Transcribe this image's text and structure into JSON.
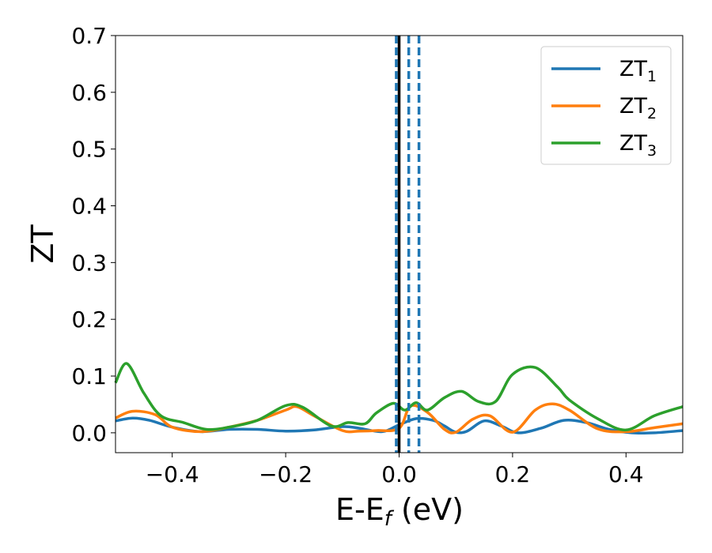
{
  "chart_data": {
    "type": "line",
    "xlabel": "E-E",
    "xlabel_sub": "f",
    "xlabel_unit": " (eV)",
    "ylabel": "ZT",
    "xlim": [
      -0.5,
      0.5
    ],
    "ylim": [
      -0.035,
      0.7
    ],
    "xticks": [
      -0.4,
      -0.2,
      0.0,
      0.2,
      0.4
    ],
    "xtick_labels": [
      "−0.4",
      "−0.2",
      "0.0",
      "0.2",
      "0.4"
    ],
    "yticks": [
      0.0,
      0.1,
      0.2,
      0.3,
      0.4,
      0.5,
      0.6,
      0.7
    ],
    "ytick_labels": [
      "0.0",
      "0.1",
      "0.2",
      "0.3",
      "0.4",
      "0.5",
      "0.6",
      "0.7"
    ],
    "grid": false,
    "legend_position": "top-right",
    "fermi_level_line": {
      "x": 0.0,
      "color": "#000000"
    },
    "dashed_lines": [
      {
        "x": -0.005,
        "color": "#1f77b4"
      },
      {
        "x": 0.017,
        "color": "#1f77b4"
      },
      {
        "x": 0.035,
        "color": "#1f77b4"
      }
    ],
    "series": [
      {
        "name": "ZT",
        "name_sub": "1",
        "color": "#1f77b4",
        "x": [
          -0.5,
          -0.47,
          -0.44,
          -0.4,
          -0.35,
          -0.3,
          -0.25,
          -0.2,
          -0.15,
          -0.1,
          -0.07,
          -0.03,
          0.0,
          0.03,
          0.06,
          0.08,
          0.1,
          0.12,
          0.15,
          0.18,
          0.21,
          0.25,
          0.29,
          0.33,
          0.37,
          0.41,
          0.45,
          0.5
        ],
        "y": [
          0.021,
          0.026,
          0.022,
          0.01,
          0.002,
          0.006,
          0.006,
          0.003,
          0.005,
          0.011,
          0.008,
          0.002,
          0.014,
          0.025,
          0.022,
          0.012,
          0.001,
          0.003,
          0.021,
          0.012,
          0.0,
          0.008,
          0.022,
          0.018,
          0.006,
          0.0,
          0.0,
          0.004
        ]
      },
      {
        "name": "ZT",
        "name_sub": "2",
        "color": "#ff7f0e",
        "x": [
          -0.5,
          -0.47,
          -0.43,
          -0.4,
          -0.35,
          -0.3,
          -0.25,
          -0.2,
          -0.18,
          -0.15,
          -0.1,
          -0.07,
          -0.04,
          0.0,
          0.02,
          0.05,
          0.08,
          0.1,
          0.13,
          0.16,
          0.2,
          0.24,
          0.27,
          0.3,
          0.35,
          0.4,
          0.45,
          0.5
        ],
        "y": [
          0.026,
          0.038,
          0.032,
          0.01,
          0.002,
          0.01,
          0.022,
          0.04,
          0.046,
          0.03,
          0.004,
          0.003,
          0.004,
          0.008,
          0.047,
          0.036,
          0.006,
          0.001,
          0.024,
          0.03,
          0.001,
          0.04,
          0.051,
          0.04,
          0.007,
          0.002,
          0.009,
          0.016
        ]
      },
      {
        "name": "ZT",
        "name_sub": "3",
        "color": "#2ca02c",
        "x": [
          -0.5,
          -0.48,
          -0.45,
          -0.42,
          -0.38,
          -0.34,
          -0.3,
          -0.25,
          -0.2,
          -0.17,
          -0.12,
          -0.09,
          -0.06,
          -0.04,
          -0.01,
          0.01,
          0.03,
          0.05,
          0.08,
          0.11,
          0.14,
          0.17,
          0.2,
          0.24,
          0.28,
          0.3,
          0.35,
          0.4,
          0.45,
          0.5
        ],
        "y": [
          0.088,
          0.122,
          0.07,
          0.03,
          0.018,
          0.006,
          0.01,
          0.022,
          0.048,
          0.045,
          0.012,
          0.018,
          0.016,
          0.035,
          0.052,
          0.04,
          0.053,
          0.04,
          0.062,
          0.073,
          0.055,
          0.055,
          0.103,
          0.115,
          0.08,
          0.058,
          0.025,
          0.005,
          0.03,
          0.046
        ]
      }
    ]
  }
}
